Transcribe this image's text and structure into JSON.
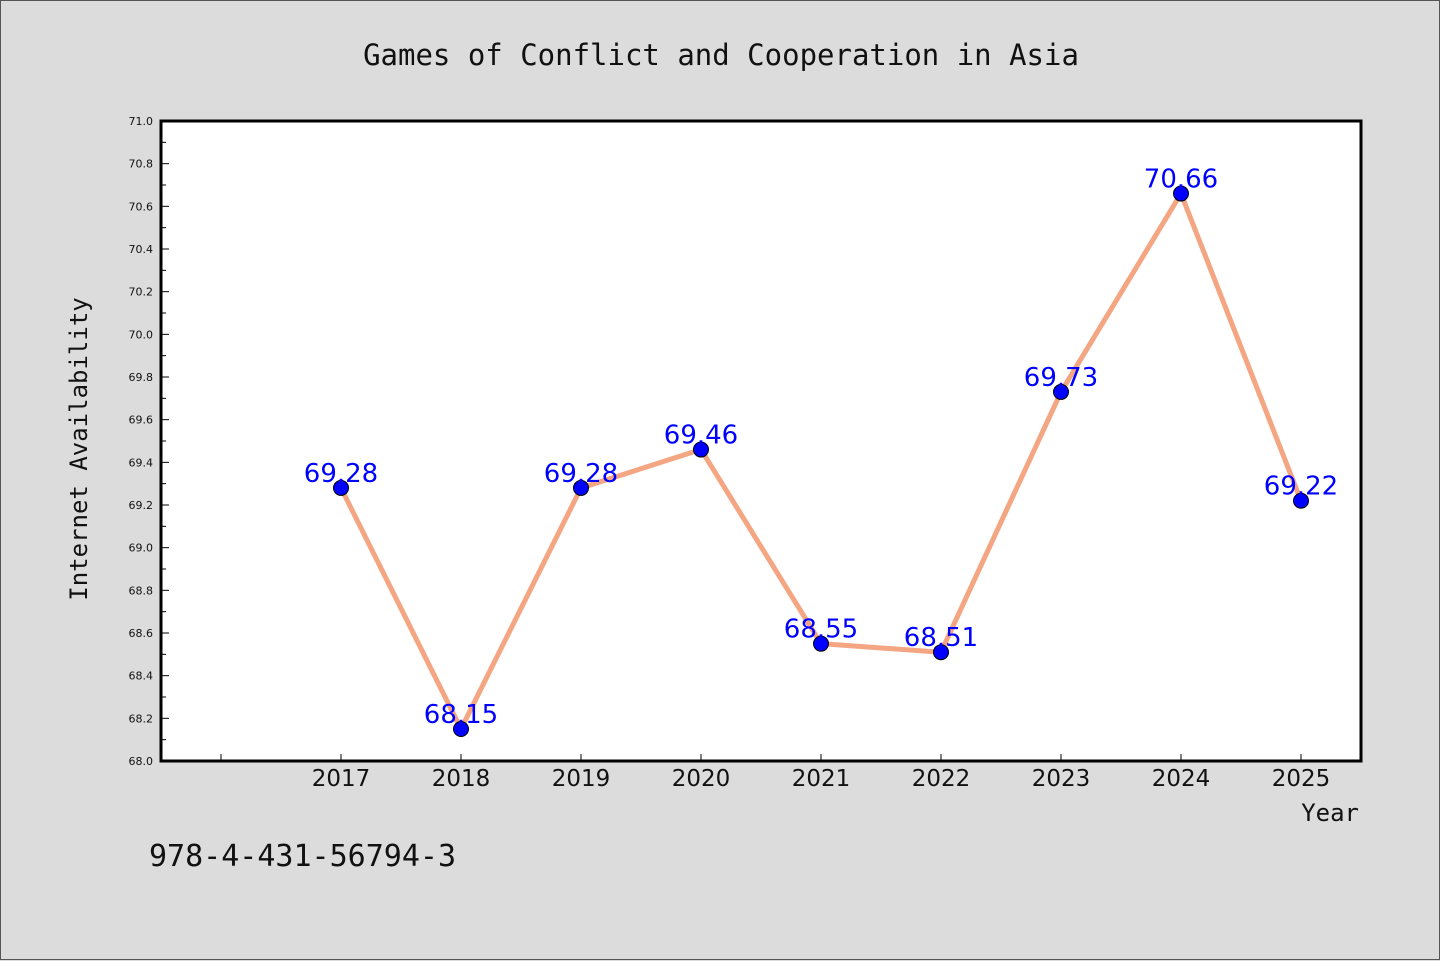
{
  "chart_data": {
    "type": "line",
    "title": "Games of Conflict and Cooperation in Asia",
    "xlabel": "Year",
    "ylabel": "Internet Availability",
    "categories": [
      "2017",
      "2018",
      "2019",
      "2020",
      "2021",
      "2022",
      "2023",
      "2024",
      "2025"
    ],
    "values": [
      69.28,
      68.15,
      69.28,
      69.46,
      68.55,
      68.51,
      69.73,
      70.66,
      69.22
    ],
    "data_labels": [
      "69.28",
      "68.15",
      "69.28",
      "69.46",
      "68.55",
      "68.51",
      "69.73",
      "70.66",
      "69.22"
    ],
    "ylim": [
      68.0,
      71.0
    ],
    "yticks": [
      "68.0",
      "68.2",
      "68.4",
      "68.6",
      "68.8",
      "69.0",
      "69.2",
      "69.4",
      "69.6",
      "69.8",
      "70.0",
      "70.2",
      "70.4",
      "70.6",
      "70.8",
      "71.0"
    ],
    "grid": false,
    "legend": "none",
    "line_color": "#f4a582",
    "marker_color": "#0000ff",
    "label_color": "#0000ff"
  },
  "footer": {
    "text": "978-4-431-56794-3"
  }
}
